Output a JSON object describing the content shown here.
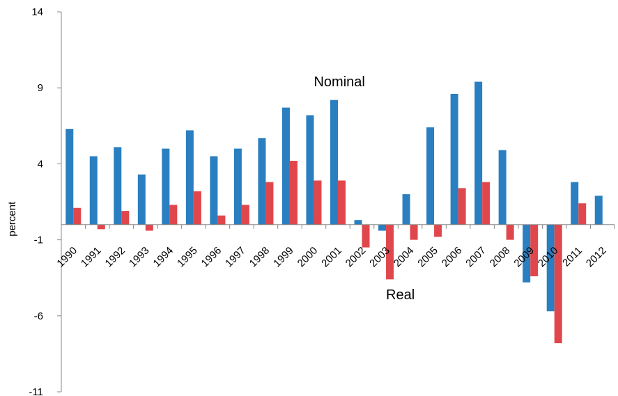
{
  "chart_data": {
    "type": "bar",
    "title": "",
    "xlabel": "",
    "ylabel": "percent",
    "ylim": [
      -11,
      14
    ],
    "yticks": [
      14,
      9,
      4,
      -1,
      -6,
      -11
    ],
    "categories": [
      "1990",
      "1991",
      "1992",
      "1993",
      "1994",
      "1995",
      "1996",
      "1997",
      "1998",
      "1999",
      "2000",
      "2001",
      "2002",
      "2003",
      "2004",
      "2005",
      "2006",
      "2007",
      "2008",
      "2009",
      "2010",
      "2011",
      "2012"
    ],
    "series": [
      {
        "color": "#2a7fc0",
        "values": [
          6.3,
          4.5,
          5.1,
          3.3,
          5.0,
          6.2,
          4.5,
          5.0,
          5.7,
          7.7,
          7.2,
          8.2,
          0.3,
          -0.4,
          2.0,
          6.4,
          8.6,
          9.4,
          4.9,
          -3.8,
          -5.7,
          2.8,
          1.9
        ]
      },
      {
        "color": "#e0474c",
        "values": [
          1.1,
          -0.3,
          0.9,
          -0.4,
          1.3,
          2.2,
          0.6,
          1.3,
          2.8,
          4.2,
          2.9,
          2.9,
          -1.5,
          -3.6,
          -1.0,
          -0.8,
          2.4,
          2.8,
          -1.0,
          -3.4,
          -7.8,
          1.4,
          0.0
        ]
      }
    ],
    "annotations": [
      {
        "text": "Nominal",
        "x": "2000",
        "y": 9.1
      },
      {
        "text": "Real",
        "x": "2003",
        "y": -4.9
      }
    ],
    "grid": false,
    "legend": "none"
  }
}
